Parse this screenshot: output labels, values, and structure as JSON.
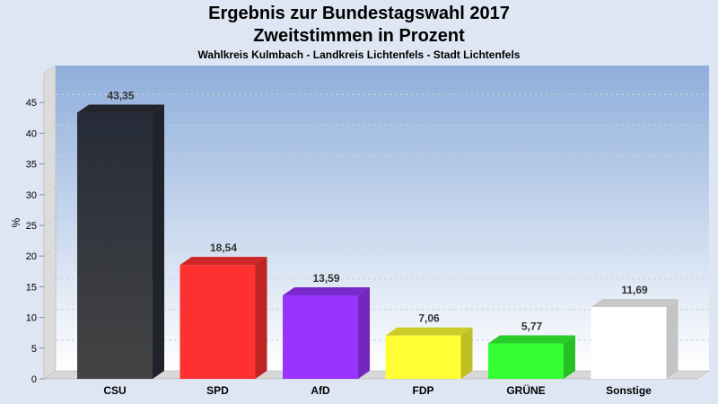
{
  "chart_data": {
    "type": "bar",
    "title": "Ergebnis zur Bundestagswahl 2017",
    "subtitle": "Zweitstimmen in Prozent",
    "caption": "Wahlkreis Kulmbach - Landkreis Lichtenfels - Stadt Lichtenfels",
    "xlabel": "",
    "ylabel": "%",
    "ylim": [
      0,
      50
    ],
    "yticks": [
      0,
      5,
      10,
      15,
      20,
      25,
      30,
      35,
      40,
      45
    ],
    "grid": true,
    "categories": [
      "CSU",
      "SPD",
      "AfD",
      "FDP",
      "GRÜNE",
      "Sonstige"
    ],
    "values": [
      43.35,
      18.54,
      13.59,
      7.06,
      5.77,
      11.69
    ],
    "labels": [
      "43,35",
      "18,54",
      "13,59",
      "7,06",
      "5,77",
      "11,69"
    ],
    "colors": [
      "#2a2e36",
      "#ff3030",
      "#9933ff",
      "#ffff33",
      "#33ff33",
      "#ffffff"
    ]
  }
}
